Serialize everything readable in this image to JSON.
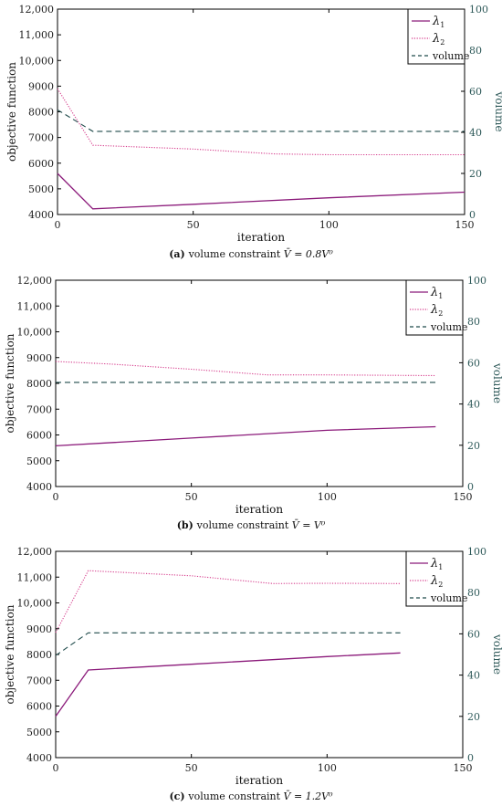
{
  "colors": {
    "lambda1": "#8b1a7a",
    "lambda2": "#d63c8c",
    "volume": "#1f4a4a",
    "axis": "#000000",
    "right_axis": "#2f5a5a"
  },
  "chart_data": [
    {
      "type": "line",
      "caption_prefix": "(a)",
      "caption_text": "volume constraint",
      "caption_math": "V̄ = 0.8V⁰",
      "xlabel": "iteration",
      "ylabel": "objective function",
      "y2label": "volume",
      "xlim": [
        0,
        150
      ],
      "ylim": [
        4000,
        12000
      ],
      "y2lim": [
        0,
        100
      ],
      "xticks": [
        0,
        50,
        100,
        150
      ],
      "yticks": [
        4000,
        5000,
        6000,
        7000,
        8000,
        9000,
        10000,
        11000,
        12000
      ],
      "ytick_labels": [
        "4000",
        "5000",
        "6000",
        "7000",
        "8000",
        "9000",
        "10,000",
        "11,000",
        "12,000"
      ],
      "y2ticks": [
        0,
        20,
        40,
        60,
        80,
        100
      ],
      "legend_position": "top-right",
      "series": [
        {
          "name": "λ1",
          "label_main": "λ",
          "label_sub": "1",
          "axis": "left",
          "style": "solid",
          "color_key": "lambda1",
          "x": [
            0,
            13,
            50,
            100,
            150
          ],
          "y": [
            5600,
            4220,
            4400,
            4650,
            4870
          ]
        },
        {
          "name": "λ2",
          "label_main": "λ",
          "label_sub": "2",
          "axis": "left",
          "style": "dotted",
          "color_key": "lambda2",
          "x": [
            0,
            13,
            50,
            80,
            100,
            150
          ],
          "y": [
            8900,
            6700,
            6550,
            6360,
            6330,
            6330
          ]
        },
        {
          "name": "volume",
          "label_main": "volume",
          "label_sub": "",
          "axis": "right",
          "style": "dashed",
          "color_key": "volume",
          "x": [
            0,
            13,
            50,
            100,
            150
          ],
          "y": [
            51,
            40.5,
            40.5,
            40.5,
            40.5
          ]
        }
      ]
    },
    {
      "type": "line",
      "caption_prefix": "(b)",
      "caption_text": "volume constraint",
      "caption_math": "V̄ = V⁰",
      "xlabel": "iteration",
      "ylabel": "objective function",
      "y2label": "volume",
      "xlim": [
        0,
        150
      ],
      "ylim": [
        4000,
        12000
      ],
      "y2lim": [
        0,
        100
      ],
      "xticks": [
        0,
        50,
        100,
        150
      ],
      "yticks": [
        4000,
        5000,
        6000,
        7000,
        8000,
        9000,
        10000,
        11000,
        12000
      ],
      "ytick_labels": [
        "4000",
        "5000",
        "6000",
        "7000",
        "8000",
        "9000",
        "10,000",
        "11,000",
        "12,000"
      ],
      "y2ticks": [
        0,
        20,
        40,
        60,
        80,
        100
      ],
      "legend_position": "top-right",
      "series": [
        {
          "name": "λ1",
          "label_main": "λ",
          "label_sub": "1",
          "axis": "left",
          "style": "solid",
          "color_key": "lambda1",
          "x": [
            0,
            50,
            100,
            140
          ],
          "y": [
            5580,
            5880,
            6180,
            6320
          ]
        },
        {
          "name": "λ2",
          "label_main": "λ",
          "label_sub": "2",
          "axis": "left",
          "style": "dotted",
          "color_key": "lambda2",
          "x": [
            0,
            20,
            50,
            78,
            100,
            140
          ],
          "y": [
            8850,
            8750,
            8550,
            8330,
            8330,
            8300
          ]
        },
        {
          "name": "volume",
          "label_main": "volume",
          "label_sub": "",
          "axis": "right",
          "style": "dashed",
          "color_key": "volume",
          "x": [
            0,
            50,
            100,
            140
          ],
          "y": [
            50.5,
            50.5,
            50.5,
            50.5
          ]
        }
      ]
    },
    {
      "type": "line",
      "caption_prefix": "(c)",
      "caption_text": "volume constraint",
      "caption_math": "V̄ = 1.2V⁰",
      "xlabel": "iteration",
      "ylabel": "objective function",
      "y2label": "volume",
      "xlim": [
        0,
        150
      ],
      "ylim": [
        4000,
        12000
      ],
      "y2lim": [
        0,
        100
      ],
      "xticks": [
        0,
        50,
        100,
        150
      ],
      "yticks": [
        4000,
        5000,
        6000,
        7000,
        8000,
        9000,
        10000,
        11000,
        12000
      ],
      "ytick_labels": [
        "4000",
        "5000",
        "6000",
        "7000",
        "8000",
        "9000",
        "10,000",
        "11,000",
        "12,000"
      ],
      "y2ticks": [
        0,
        20,
        40,
        60,
        80,
        100
      ],
      "legend_position": "top-right",
      "series": [
        {
          "name": "λ1",
          "label_main": "λ",
          "label_sub": "1",
          "axis": "left",
          "style": "solid",
          "color_key": "lambda1",
          "x": [
            0,
            12,
            50,
            100,
            127
          ],
          "y": [
            5600,
            7400,
            7620,
            7920,
            8060
          ]
        },
        {
          "name": "λ2",
          "label_main": "λ",
          "label_sub": "2",
          "axis": "left",
          "style": "dotted",
          "color_key": "lambda2",
          "x": [
            0,
            12,
            50,
            80,
            100,
            127
          ],
          "y": [
            8850,
            11250,
            11050,
            10750,
            10760,
            10750
          ]
        },
        {
          "name": "volume",
          "label_main": "volume",
          "label_sub": "",
          "axis": "right",
          "style": "dashed",
          "color_key": "volume",
          "x": [
            0,
            12,
            50,
            100,
            127
          ],
          "y": [
            49.5,
            60.5,
            60.5,
            60.5,
            60.5
          ]
        }
      ]
    }
  ]
}
